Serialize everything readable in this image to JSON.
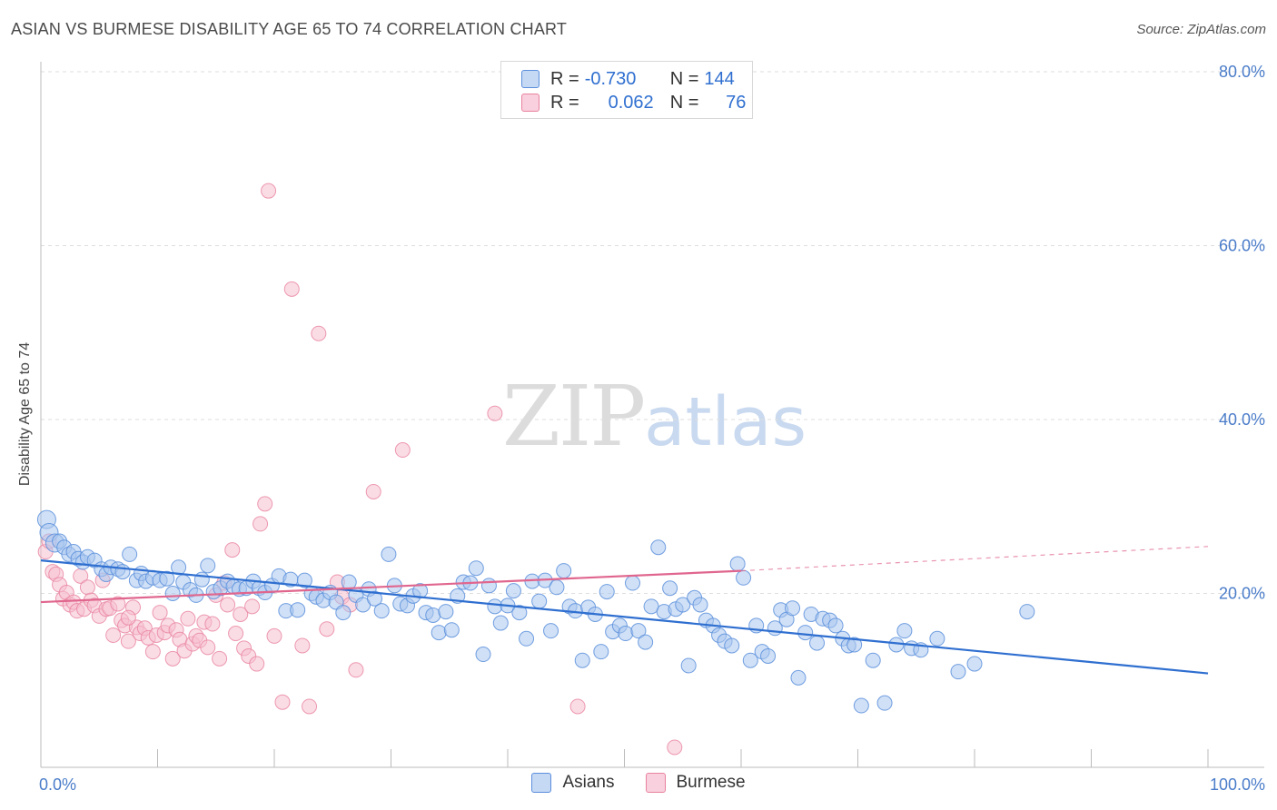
{
  "title": "ASIAN VS BURMESE DISABILITY AGE 65 TO 74 CORRELATION CHART",
  "source": "Source: ZipAtlas.com",
  "watermark": {
    "zip": "ZIP",
    "atlas": "atlas"
  },
  "colors": {
    "asians_fill": "#a9c6ef",
    "asians_stroke": "#5b8fdc",
    "asians_line": "#2f6fd0",
    "burmese_fill": "#f6bfd0",
    "burmese_stroke": "#e8829f",
    "burmese_line": "#e0668e"
  },
  "legend": {
    "rows": [
      {
        "r_label": "R =",
        "r_value": "-0.730",
        "n_label": "N =",
        "n_value": "144"
      },
      {
        "r_label": "R =",
        "r_value": "0.062",
        "n_label": "N =",
        "n_value": "76"
      }
    ]
  },
  "bottom_legend": {
    "asians": "Asians",
    "burmese": "Burmese"
  },
  "chart_data": {
    "type": "scatter",
    "xlabel": "",
    "ylabel": "Disability Age 65 to 74",
    "xlim": [
      0,
      100
    ],
    "ylim": [
      0,
      80
    ],
    "x_tick_labels": [
      "0.0%",
      "100.0%"
    ],
    "y_ticks": [
      20,
      40,
      60,
      80
    ],
    "y_tick_labels": [
      "20.0%",
      "40.0%",
      "60.0%",
      "80.0%"
    ],
    "grid": true,
    "legend_position": "top-center",
    "series": [
      {
        "name": "Asians",
        "trend": {
          "x": [
            0,
            100
          ],
          "y": [
            23.8,
            10.8
          ]
        },
        "points": [
          [
            0.5,
            28.5
          ],
          [
            0.7,
            27
          ],
          [
            1.2,
            25.8
          ],
          [
            1.6,
            26
          ],
          [
            2,
            25.3
          ],
          [
            2.4,
            24.5
          ],
          [
            2.8,
            24.8
          ],
          [
            3.2,
            24
          ],
          [
            3.6,
            23.6
          ],
          [
            4,
            24.2
          ],
          [
            4.6,
            23.8
          ],
          [
            5.2,
            22.8
          ],
          [
            5.6,
            22.2
          ],
          [
            6,
            23
          ],
          [
            6.6,
            22.8
          ],
          [
            7,
            22.5
          ],
          [
            7.6,
            24.5
          ],
          [
            8.2,
            21.5
          ],
          [
            8.6,
            22.3
          ],
          [
            9,
            21.4
          ],
          [
            9.6,
            21.8
          ],
          [
            10.2,
            21.5
          ],
          [
            10.8,
            21.7
          ],
          [
            11.3,
            20
          ],
          [
            11.8,
            23
          ],
          [
            12.2,
            21.3
          ],
          [
            12.8,
            20.4
          ],
          [
            13.3,
            19.8
          ],
          [
            13.8,
            21.6
          ],
          [
            14.3,
            23.2
          ],
          [
            14.8,
            20.2
          ],
          [
            15.4,
            20.6
          ],
          [
            16,
            21.4
          ],
          [
            16.5,
            20.8
          ],
          [
            17,
            20.5
          ],
          [
            17.6,
            20.6
          ],
          [
            18.2,
            21.4
          ],
          [
            18.7,
            20.6
          ],
          [
            19.2,
            20.1
          ],
          [
            19.8,
            20.9
          ],
          [
            20.4,
            22
          ],
          [
            21,
            18
          ],
          [
            21.4,
            21.6
          ],
          [
            22,
            18.1
          ],
          [
            22.6,
            21.5
          ],
          [
            23.2,
            20
          ],
          [
            23.6,
            19.6
          ],
          [
            24.2,
            19.2
          ],
          [
            24.8,
            20.1
          ],
          [
            25.3,
            19
          ],
          [
            25.9,
            17.8
          ],
          [
            26.4,
            21.3
          ],
          [
            27,
            19.8
          ],
          [
            27.6,
            18.7
          ],
          [
            28.1,
            20.5
          ],
          [
            28.6,
            19.4
          ],
          [
            29.2,
            18
          ],
          [
            29.8,
            24.5
          ],
          [
            30.3,
            20.9
          ],
          [
            30.8,
            18.8
          ],
          [
            31.4,
            18.6
          ],
          [
            31.9,
            19.7
          ],
          [
            32.5,
            20.3
          ],
          [
            33,
            17.8
          ],
          [
            33.6,
            17.5
          ],
          [
            34.1,
            15.5
          ],
          [
            34.7,
            17.9
          ],
          [
            35.2,
            15.8
          ],
          [
            35.7,
            19.7
          ],
          [
            36.2,
            21.3
          ],
          [
            36.8,
            21.2
          ],
          [
            37.3,
            22.9
          ],
          [
            37.9,
            13
          ],
          [
            38.4,
            20.9
          ],
          [
            38.9,
            18.5
          ],
          [
            39.4,
            16.6
          ],
          [
            40,
            18.6
          ],
          [
            40.5,
            20.3
          ],
          [
            41,
            17.8
          ],
          [
            41.6,
            14.8
          ],
          [
            42.1,
            21.4
          ],
          [
            42.7,
            19.1
          ],
          [
            43.2,
            21.5
          ],
          [
            43.7,
            15.7
          ],
          [
            44.2,
            20.7
          ],
          [
            44.8,
            22.6
          ],
          [
            45.3,
            18.5
          ],
          [
            45.8,
            18
          ],
          [
            46.4,
            12.3
          ],
          [
            46.9,
            18.4
          ],
          [
            47.5,
            17.6
          ],
          [
            48,
            13.3
          ],
          [
            48.5,
            20.2
          ],
          [
            49,
            15.6
          ],
          [
            49.6,
            16.3
          ],
          [
            50.1,
            15.4
          ],
          [
            50.7,
            21.2
          ],
          [
            51.2,
            15.7
          ],
          [
            51.8,
            14.4
          ],
          [
            52.3,
            18.5
          ],
          [
            52.9,
            25.3
          ],
          [
            53.4,
            17.9
          ],
          [
            53.9,
            20.6
          ],
          [
            54.4,
            18.2
          ],
          [
            55,
            18.7
          ],
          [
            55.5,
            11.7
          ],
          [
            56,
            19.5
          ],
          [
            56.5,
            18.7
          ],
          [
            57,
            16.9
          ],
          [
            57.6,
            16.3
          ],
          [
            58.1,
            15.2
          ],
          [
            58.6,
            14.5
          ],
          [
            59.2,
            14
          ],
          [
            59.7,
            23.4
          ],
          [
            60.2,
            21.8
          ],
          [
            60.8,
            12.3
          ],
          [
            61.3,
            16.3
          ],
          [
            61.8,
            13.3
          ],
          [
            62.3,
            12.8
          ],
          [
            62.9,
            16
          ],
          [
            63.4,
            18.1
          ],
          [
            63.9,
            17
          ],
          [
            64.4,
            18.3
          ],
          [
            64.9,
            10.3
          ],
          [
            65.5,
            15.5
          ],
          [
            66,
            17.6
          ],
          [
            66.5,
            14.3
          ],
          [
            67,
            17.1
          ],
          [
            67.6,
            16.9
          ],
          [
            68.1,
            16.3
          ],
          [
            68.7,
            14.8
          ],
          [
            69.2,
            14
          ],
          [
            69.7,
            14.1
          ],
          [
            70.3,
            7.1
          ],
          [
            71.3,
            12.3
          ],
          [
            72.3,
            7.4
          ],
          [
            73.3,
            14.1
          ],
          [
            74,
            15.7
          ],
          [
            74.6,
            13.7
          ],
          [
            75.4,
            13.5
          ],
          [
            76.8,
            14.8
          ],
          [
            78.6,
            11
          ],
          [
            80,
            11.9
          ],
          [
            84.5,
            17.9
          ]
        ]
      },
      {
        "name": "Burmese",
        "trend": {
          "x": [
            0,
            60
          ],
          "y": [
            19.0,
            22.6
          ]
        },
        "trend_dashed": {
          "x": [
            60,
            100
          ],
          "y": [
            22.6,
            25.4
          ]
        },
        "points": [
          [
            0.4,
            24.8
          ],
          [
            0.7,
            26
          ],
          [
            1,
            22.5
          ],
          [
            1.3,
            22.2
          ],
          [
            1.6,
            21
          ],
          [
            1.9,
            19.4
          ],
          [
            2.2,
            20.1
          ],
          [
            2.5,
            18.7
          ],
          [
            2.8,
            19
          ],
          [
            3.1,
            18
          ],
          [
            3.4,
            22
          ],
          [
            3.7,
            18.2
          ],
          [
            4,
            20.7
          ],
          [
            4.3,
            19.2
          ],
          [
            4.6,
            18.6
          ],
          [
            5,
            17.4
          ],
          [
            5.3,
            21.5
          ],
          [
            5.6,
            18.2
          ],
          [
            5.9,
            18.3
          ],
          [
            6.2,
            15.2
          ],
          [
            6.6,
            18.8
          ],
          [
            6.9,
            16.9
          ],
          [
            7.2,
            16.3
          ],
          [
            7.5,
            14.5
          ],
          [
            7.9,
            18.4
          ],
          [
            8.2,
            16.1
          ],
          [
            8.5,
            15.4
          ],
          [
            8.9,
            16
          ],
          [
            9.2,
            14.9
          ],
          [
            9.6,
            13.3
          ],
          [
            9.9,
            15.2
          ],
          [
            10.2,
            17.8
          ],
          [
            10.6,
            15.5
          ],
          [
            10.9,
            16.3
          ],
          [
            11.3,
            12.5
          ],
          [
            11.6,
            15.8
          ],
          [
            11.9,
            14.7
          ],
          [
            12.3,
            13.4
          ],
          [
            12.6,
            17.1
          ],
          [
            13,
            14.2
          ],
          [
            13.3,
            15.1
          ],
          [
            13.6,
            14.6
          ],
          [
            14,
            16.7
          ],
          [
            14.3,
            13.8
          ],
          [
            14.7,
            16.5
          ],
          [
            15,
            19.8
          ],
          [
            15.3,
            12.5
          ],
          [
            15.7,
            21.2
          ],
          [
            16,
            18.7
          ],
          [
            16.4,
            25
          ],
          [
            16.7,
            15.4
          ],
          [
            17.1,
            17.6
          ],
          [
            17.4,
            13.7
          ],
          [
            17.8,
            12.8
          ],
          [
            18.1,
            18.5
          ],
          [
            18.5,
            11.9
          ],
          [
            18.8,
            28
          ],
          [
            19.2,
            30.3
          ],
          [
            19.5,
            66.3
          ],
          [
            20,
            15.1
          ],
          [
            20.7,
            7.5
          ],
          [
            21.5,
            55
          ],
          [
            22.4,
            14
          ],
          [
            23,
            7
          ],
          [
            23.8,
            49.9
          ],
          [
            24.5,
            15.9
          ],
          [
            25.4,
            21.3
          ],
          [
            25.8,
            19.6
          ],
          [
            26.5,
            18.7
          ],
          [
            27,
            11.2
          ],
          [
            28.5,
            31.7
          ],
          [
            31,
            36.5
          ],
          [
            38.9,
            40.7
          ],
          [
            46,
            7
          ],
          [
            54.3,
            2.3
          ],
          [
            7.5,
            17.2
          ]
        ]
      }
    ]
  }
}
